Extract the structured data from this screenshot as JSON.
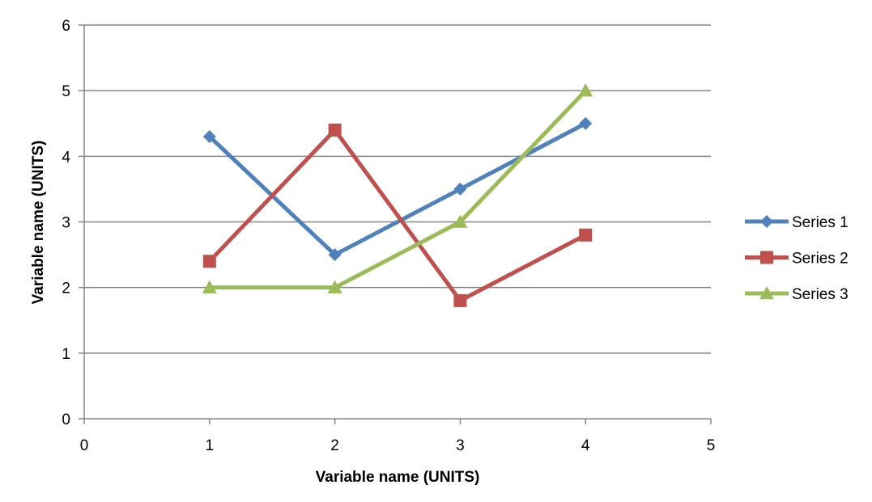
{
  "chart_data": {
    "type": "line",
    "title": "",
    "xlabel": "Variable name (UNITS)",
    "ylabel": "Variable name (UNITS)",
    "xlim": [
      0,
      5
    ],
    "ylim": [
      0,
      6
    ],
    "xticks": [
      "0",
      "1",
      "2",
      "3",
      "4",
      "5"
    ],
    "yticks": [
      "0",
      "1",
      "2",
      "3",
      "4",
      "5",
      "6"
    ],
    "grid": "horizontal",
    "legend": "right",
    "series": [
      {
        "name": "Series 1",
        "color": "#4F81BD",
        "marker": "diamond",
        "x": [
          1,
          2,
          3,
          4
        ],
        "y": [
          4.3,
          2.5,
          3.5,
          4.5
        ]
      },
      {
        "name": "Series 2",
        "color": "#C0504D",
        "marker": "square",
        "x": [
          1,
          2,
          3,
          4
        ],
        "y": [
          2.4,
          4.4,
          1.8,
          2.8
        ]
      },
      {
        "name": "Series 3",
        "color": "#9BBB59",
        "marker": "triangle",
        "x": [
          1,
          2,
          3,
          4
        ],
        "y": [
          2.0,
          2.0,
          3.0,
          5.0
        ]
      }
    ]
  }
}
